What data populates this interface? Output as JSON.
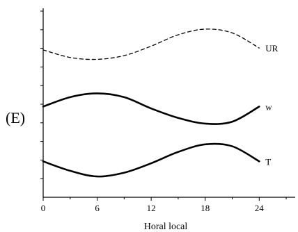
{
  "panel_label": "(E)",
  "chart_data": {
    "type": "line",
    "title": "",
    "xlabel": "Horal local",
    "ylabel": "",
    "xlim": [
      0,
      28
    ],
    "xticks": [
      0,
      6,
      12,
      18,
      24
    ],
    "xtick_labels": [
      "0",
      "6",
      "12",
      "18",
      "24"
    ],
    "y_tick_count": 10,
    "grid": false,
    "series": [
      {
        "name": "UR",
        "style": "dashed",
        "x": [
          0,
          3,
          6,
          9,
          12,
          15,
          18,
          21,
          24
        ],
        "y": [
          0.78,
          0.74,
          0.73,
          0.75,
          0.8,
          0.86,
          0.89,
          0.87,
          0.79
        ]
      },
      {
        "name": "w",
        "style": "solid",
        "x": [
          0,
          3,
          6,
          9,
          12,
          15,
          18,
          21,
          24
        ],
        "y": [
          0.48,
          0.53,
          0.55,
          0.53,
          0.47,
          0.42,
          0.39,
          0.4,
          0.48
        ]
      },
      {
        "name": "T",
        "style": "solid",
        "x": [
          0,
          3,
          6,
          9,
          12,
          15,
          18,
          21,
          24
        ],
        "y": [
          0.19,
          0.14,
          0.11,
          0.13,
          0.18,
          0.24,
          0.28,
          0.27,
          0.19
        ]
      }
    ]
  }
}
